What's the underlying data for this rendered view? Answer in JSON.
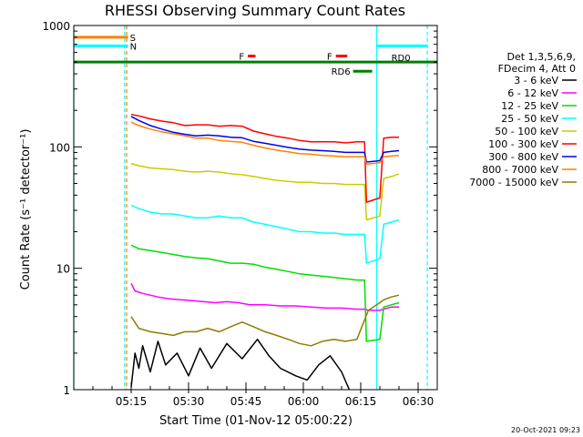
{
  "chart_data": {
    "type": "line",
    "title": "RHESSI Observing Summary Count Rates",
    "ylabel": "Count Rate (s⁻¹ detector⁻¹)",
    "xlabel": "Start Time (01-Nov-12 05:00:22)",
    "y_scale": "log",
    "ylim": [
      1,
      1000
    ],
    "xlim_minutes": [
      0,
      95
    ],
    "x_ticks": [
      {
        "m": 15,
        "label": "05:15"
      },
      {
        "m": 30,
        "label": "05:30"
      },
      {
        "m": 45,
        "label": "05:45"
      },
      {
        "m": 60,
        "label": "06:00"
      },
      {
        "m": 75,
        "label": "06:15"
      },
      {
        "m": 90,
        "label": "06:30"
      }
    ],
    "y_ticks": [
      {
        "v": 1,
        "label": "1"
      },
      {
        "v": 10,
        "label": "10"
      },
      {
        "v": 100,
        "label": "100"
      },
      {
        "v": 1000,
        "label": "1000"
      }
    ],
    "legend_header": [
      "Det 1,3,5,6,9,",
      "FDecim 4, Att 0"
    ],
    "series": [
      {
        "name": "3 - 6 keV",
        "color": "#000000",
        "points": [
          [
            15,
            1.05
          ],
          [
            16,
            2.0
          ],
          [
            17,
            1.5
          ],
          [
            18,
            2.3
          ],
          [
            20,
            1.4
          ],
          [
            22,
            2.5
          ],
          [
            24,
            1.6
          ],
          [
            27,
            2.0
          ],
          [
            30,
            1.3
          ],
          [
            33,
            2.2
          ],
          [
            36,
            1.5
          ],
          [
            40,
            2.4
          ],
          [
            44,
            1.8
          ],
          [
            48,
            2.6
          ],
          [
            51,
            1.9
          ],
          [
            54,
            1.5
          ],
          [
            58,
            1.3
          ],
          [
            61,
            1.2
          ],
          [
            64,
            1.6
          ],
          [
            67,
            1.9
          ],
          [
            70,
            1.4
          ],
          [
            72,
            1.0
          ]
        ]
      },
      {
        "name": "6 - 12 keV",
        "color": "#ff00ff",
        "points": [
          [
            15,
            7.5
          ],
          [
            16,
            6.5
          ],
          [
            18,
            6.2
          ],
          [
            20,
            6.0
          ],
          [
            22,
            5.8
          ],
          [
            25,
            5.6
          ],
          [
            28,
            5.5
          ],
          [
            31,
            5.4
          ],
          [
            34,
            5.3
          ],
          [
            37,
            5.2
          ],
          [
            40,
            5.3
          ],
          [
            43,
            5.2
          ],
          [
            46,
            5.0
          ],
          [
            50,
            5.0
          ],
          [
            54,
            4.9
          ],
          [
            58,
            4.9
          ],
          [
            62,
            4.8
          ],
          [
            66,
            4.7
          ],
          [
            70,
            4.7
          ],
          [
            74,
            4.6
          ],
          [
            76,
            4.6
          ],
          [
            77,
            4.5
          ],
          [
            80,
            4.5
          ],
          [
            81,
            4.6
          ],
          [
            82,
            4.7
          ],
          [
            83,
            4.8
          ],
          [
            85,
            4.8
          ]
        ]
      },
      {
        "name": "12 - 25 keV",
        "color": "#00dd00",
        "points": [
          [
            15,
            15.5
          ],
          [
            17,
            14.5
          ],
          [
            20,
            14.0
          ],
          [
            23,
            13.5
          ],
          [
            26,
            13.0
          ],
          [
            29,
            12.5
          ],
          [
            32,
            12.2
          ],
          [
            35,
            12.0
          ],
          [
            38,
            11.5
          ],
          [
            41,
            11.0
          ],
          [
            44,
            11.0
          ],
          [
            47,
            10.8
          ],
          [
            50,
            10.2
          ],
          [
            53,
            9.8
          ],
          [
            56,
            9.4
          ],
          [
            59,
            9.0
          ],
          [
            62,
            8.8
          ],
          [
            65,
            8.6
          ],
          [
            68,
            8.4
          ],
          [
            71,
            8.2
          ],
          [
            74,
            8.0
          ],
          [
            76,
            8.0
          ],
          [
            76.5,
            2.5
          ],
          [
            80,
            2.6
          ],
          [
            81,
            4.8
          ],
          [
            83,
            5.0
          ],
          [
            85,
            5.2
          ]
        ]
      },
      {
        "name": "25 - 50 keV",
        "color": "#00ffff",
        "points": [
          [
            15,
            33
          ],
          [
            17,
            31
          ],
          [
            20,
            29
          ],
          [
            23,
            28
          ],
          [
            26,
            28
          ],
          [
            29,
            27
          ],
          [
            32,
            26
          ],
          [
            35,
            26
          ],
          [
            38,
            27
          ],
          [
            41,
            26
          ],
          [
            44,
            26
          ],
          [
            47,
            24
          ],
          [
            50,
            23
          ],
          [
            53,
            22
          ],
          [
            56,
            21
          ],
          [
            59,
            20
          ],
          [
            62,
            20
          ],
          [
            65,
            19.5
          ],
          [
            68,
            19.5
          ],
          [
            71,
            19
          ],
          [
            74,
            19
          ],
          [
            76,
            19
          ],
          [
            76.5,
            11
          ],
          [
            80,
            12
          ],
          [
            81,
            23
          ],
          [
            83,
            24
          ],
          [
            85,
            25
          ]
        ]
      },
      {
        "name": "50 - 100 keV",
        "color": "#cccc00",
        "points": [
          [
            15,
            73
          ],
          [
            17,
            70
          ],
          [
            20,
            67
          ],
          [
            23,
            66
          ],
          [
            26,
            65
          ],
          [
            29,
            63
          ],
          [
            32,
            62
          ],
          [
            35,
            63
          ],
          [
            38,
            62
          ],
          [
            41,
            60
          ],
          [
            44,
            59
          ],
          [
            47,
            57
          ],
          [
            50,
            55
          ],
          [
            53,
            53
          ],
          [
            56,
            52
          ],
          [
            59,
            51
          ],
          [
            62,
            51
          ],
          [
            65,
            50
          ],
          [
            68,
            50
          ],
          [
            71,
            49
          ],
          [
            74,
            49
          ],
          [
            76,
            49
          ],
          [
            76.5,
            25
          ],
          [
            80,
            27
          ],
          [
            81,
            55
          ],
          [
            83,
            57
          ],
          [
            85,
            60
          ]
        ]
      },
      {
        "name": "100 - 300 keV",
        "color": "#ff0000",
        "points": [
          [
            15,
            185
          ],
          [
            17,
            180
          ],
          [
            20,
            170
          ],
          [
            23,
            163
          ],
          [
            26,
            158
          ],
          [
            29,
            150
          ],
          [
            32,
            152
          ],
          [
            35,
            152
          ],
          [
            38,
            148
          ],
          [
            41,
            150
          ],
          [
            44,
            148
          ],
          [
            47,
            135
          ],
          [
            50,
            128
          ],
          [
            53,
            122
          ],
          [
            56,
            118
          ],
          [
            59,
            113
          ],
          [
            62,
            110
          ],
          [
            65,
            110
          ],
          [
            68,
            110
          ],
          [
            71,
            108
          ],
          [
            74,
            110
          ],
          [
            76,
            110
          ],
          [
            76.5,
            35
          ],
          [
            80,
            38
          ],
          [
            81,
            118
          ],
          [
            83,
            120
          ],
          [
            85,
            120
          ]
        ]
      },
      {
        "name": "300 - 800 keV",
        "color": "#0000ee",
        "points": [
          [
            15,
            178
          ],
          [
            17,
            165
          ],
          [
            20,
            150
          ],
          [
            23,
            140
          ],
          [
            26,
            132
          ],
          [
            29,
            127
          ],
          [
            32,
            123
          ],
          [
            35,
            125
          ],
          [
            38,
            123
          ],
          [
            41,
            120
          ],
          [
            44,
            119
          ],
          [
            47,
            111
          ],
          [
            50,
            107
          ],
          [
            53,
            103
          ],
          [
            56,
            99
          ],
          [
            59,
            96
          ],
          [
            62,
            94
          ],
          [
            65,
            93
          ],
          [
            68,
            92
          ],
          [
            71,
            90
          ],
          [
            74,
            90
          ],
          [
            76,
            90
          ],
          [
            76.5,
            75
          ],
          [
            80,
            77
          ],
          [
            81,
            90
          ],
          [
            83,
            92
          ],
          [
            85,
            93
          ]
        ]
      },
      {
        "name": "800 - 7000 keV",
        "color": "#ff8000",
        "points": [
          [
            15,
            160
          ],
          [
            17,
            150
          ],
          [
            20,
            140
          ],
          [
            23,
            133
          ],
          [
            26,
            128
          ],
          [
            29,
            123
          ],
          [
            32,
            118
          ],
          [
            35,
            118
          ],
          [
            38,
            113
          ],
          [
            41,
            111
          ],
          [
            44,
            109
          ],
          [
            47,
            103
          ],
          [
            50,
            98
          ],
          [
            53,
            94
          ],
          [
            56,
            91
          ],
          [
            59,
            88
          ],
          [
            62,
            87
          ],
          [
            65,
            85
          ],
          [
            68,
            84
          ],
          [
            71,
            83
          ],
          [
            74,
            83
          ],
          [
            76,
            83
          ],
          [
            76.5,
            72
          ],
          [
            80,
            74
          ],
          [
            81,
            83
          ],
          [
            83,
            84
          ],
          [
            85,
            85
          ]
        ]
      },
      {
        "name": "7000 - 15000 keV",
        "color": "#8b7d00",
        "points": [
          [
            15,
            4.0
          ],
          [
            17,
            3.2
          ],
          [
            20,
            3.0
          ],
          [
            23,
            2.9
          ],
          [
            26,
            2.8
          ],
          [
            29,
            3.0
          ],
          [
            32,
            3.0
          ],
          [
            35,
            3.2
          ],
          [
            38,
            3.0
          ],
          [
            41,
            3.3
          ],
          [
            44,
            3.6
          ],
          [
            47,
            3.3
          ],
          [
            50,
            3.0
          ],
          [
            53,
            2.8
          ],
          [
            56,
            2.6
          ],
          [
            59,
            2.4
          ],
          [
            62,
            2.3
          ],
          [
            65,
            2.5
          ],
          [
            68,
            2.6
          ],
          [
            71,
            2.5
          ],
          [
            74,
            2.6
          ],
          [
            77,
            4.5
          ],
          [
            80,
            5.2
          ],
          [
            81,
            5.5
          ],
          [
            83,
            5.8
          ],
          [
            85,
            6.0
          ]
        ]
      }
    ],
    "flag_annotations": [
      {
        "label": "S",
        "color": "#ff8000",
        "y_value": 800,
        "x_start": 0,
        "x_end": 14.2
      },
      {
        "label": "N",
        "color": "#00ffff",
        "y_value": 680,
        "x_start": 0,
        "x_end": 14.2
      },
      {
        "label": "F",
        "color": "#ff0000",
        "y_value": 560,
        "x_start": 45.5,
        "x_end": 47.5
      },
      {
        "label": "F",
        "color": "#ff0000",
        "y_value": 560,
        "x_start": 68.5,
        "x_end": 71.5
      },
      {
        "label": "RD0",
        "color": "#008000",
        "y_value": 500,
        "x_start": 0,
        "x_end": 95
      },
      {
        "label": "RD6",
        "color": "#008000",
        "y_value": 420,
        "x_start": 73,
        "x_end": 78
      },
      {
        "label": "",
        "color": "#00ffff",
        "y_value": 680,
        "x_start": 79,
        "x_end": 92.5
      }
    ],
    "vertical_markers": [
      {
        "m": 0,
        "color": "#00ffff",
        "style": "solid"
      },
      {
        "m": 13.3,
        "color": "#00ffff",
        "style": "dashed"
      },
      {
        "m": 13.8,
        "color": "#ff8000",
        "style": "dashed"
      },
      {
        "m": 79.2,
        "color": "#00ffff",
        "style": "solid"
      },
      {
        "m": 92.4,
        "color": "#00ffff",
        "style": "dashed"
      }
    ]
  },
  "footer": {
    "timestamp": "20-Oct-2021 09:23"
  }
}
